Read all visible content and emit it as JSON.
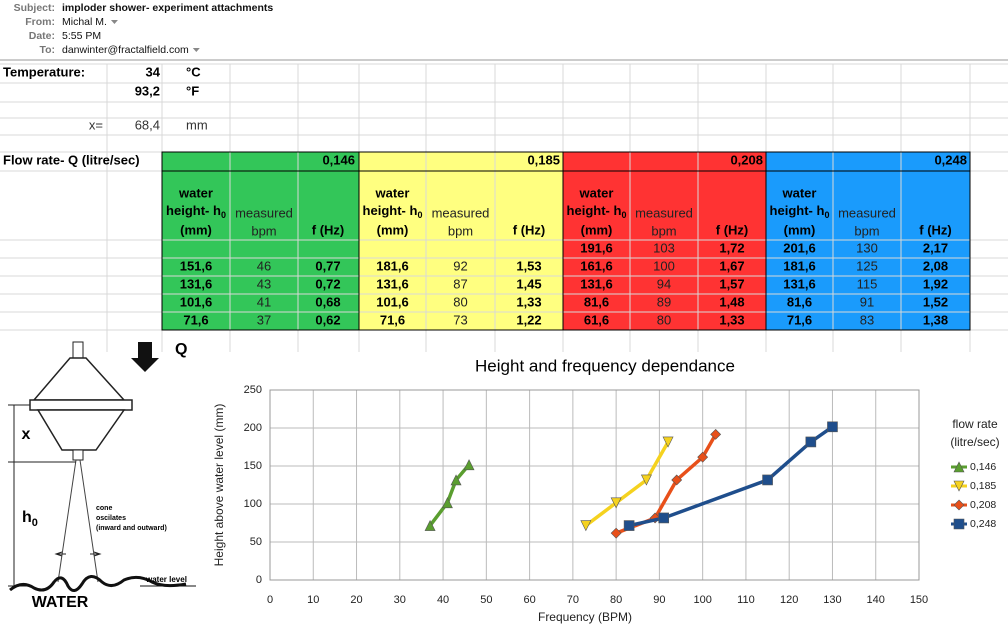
{
  "email": {
    "fields": [
      {
        "label": "Subject:",
        "value": "imploder shower- experiment attachments"
      },
      {
        "label": "From:",
        "value": "Michal M."
      },
      {
        "label": "Date:",
        "value": "5:55 PM"
      },
      {
        "label": "To:",
        "value": "danwinter@fractalfield.com"
      }
    ]
  },
  "sheet": {
    "temperature_label": "Temperature:",
    "temp_c": "34",
    "unit_c": "°C",
    "temp_f": "93,2",
    "unit_f": "°F",
    "x_label": "x=",
    "x_value": "68,4",
    "x_unit": "mm",
    "flow_label": "Flow rate- Q (litre/sec)",
    "header_height": [
      "water",
      "height- h",
      "0",
      "(mm)"
    ],
    "header_bpm": [
      "measured",
      "bpm"
    ],
    "header_freq": "f (Hz)",
    "groups": [
      {
        "flow": "0,146",
        "color": "#33c659",
        "rows": [
          null,
          [
            "151,6",
            "46",
            "0,77"
          ],
          [
            "131,6",
            "43",
            "0,72"
          ],
          [
            "101,6",
            "41",
            "0,68"
          ],
          [
            "71,6",
            "37",
            "0,62"
          ]
        ]
      },
      {
        "flow": "0,185",
        "color": "#ffff80",
        "rows": [
          null,
          [
            "181,6",
            "92",
            "1,53"
          ],
          [
            "131,6",
            "87",
            "1,45"
          ],
          [
            "101,6",
            "80",
            "1,33"
          ],
          [
            "71,6",
            "73",
            "1,22"
          ]
        ]
      },
      {
        "flow": "0,208",
        "color": "#ff3333",
        "rows": [
          [
            "191,6",
            "103",
            "1,72"
          ],
          [
            "161,6",
            "100",
            "1,67"
          ],
          [
            "131,6",
            "94",
            "1,57"
          ],
          [
            "81,6",
            "89",
            "1,48"
          ],
          [
            "61,6",
            "80",
            "1,33"
          ]
        ]
      },
      {
        "flow": "0,248",
        "color": "#1a9bfc",
        "rows": [
          [
            "201,6",
            "130",
            "2,17"
          ],
          [
            "181,6",
            "125",
            "2,08"
          ],
          [
            "131,6",
            "115",
            "1,92"
          ],
          [
            "81,6",
            "91",
            "1,52"
          ],
          [
            "71,6",
            "83",
            "1,38"
          ]
        ]
      }
    ]
  },
  "diagram": {
    "q": "Q",
    "x": "x",
    "h": "h",
    "h_sub": "0",
    "cone_note": [
      "cone",
      "oscilates",
      "(inward and outward)"
    ],
    "water_level": "water level",
    "water": "WATER"
  },
  "chart_data": {
    "type": "line",
    "title": "Height and frequency dependance",
    "x_label": "Frequency (BPM)",
    "y_label": "Height above water level (mm)",
    "legend_title": [
      "flow rate",
      "(litre/sec)"
    ],
    "xlim": [
      0,
      150
    ],
    "xticks": [
      0,
      10,
      20,
      30,
      40,
      50,
      60,
      70,
      80,
      90,
      100,
      110,
      120,
      130,
      140,
      150
    ],
    "ylim": [
      0,
      250
    ],
    "yticks": [
      0,
      50,
      100,
      150,
      200,
      250
    ],
    "grid": true,
    "legend": "right",
    "series": [
      {
        "name": "0,146",
        "color": "#5a9e2f",
        "marker": "triangle-up",
        "x": [
          46,
          43,
          41,
          37
        ],
        "values": [
          151.6,
          131.6,
          101.6,
          71.6
        ]
      },
      {
        "name": "0,185",
        "color": "#f5d21f",
        "marker": "triangle-down",
        "x": [
          92,
          87,
          80,
          73
        ],
        "values": [
          181.6,
          131.6,
          101.6,
          71.6
        ]
      },
      {
        "name": "0,208",
        "color": "#e8501a",
        "marker": "diamond",
        "x": [
          103,
          100,
          94,
          89,
          80
        ],
        "values": [
          191.6,
          161.6,
          131.6,
          81.6,
          61.6
        ]
      },
      {
        "name": "0,248",
        "color": "#1f4e8c",
        "marker": "square",
        "x": [
          130,
          125,
          115,
          91,
          83
        ],
        "values": [
          201.6,
          181.6,
          131.6,
          81.6,
          71.6
        ]
      }
    ]
  }
}
